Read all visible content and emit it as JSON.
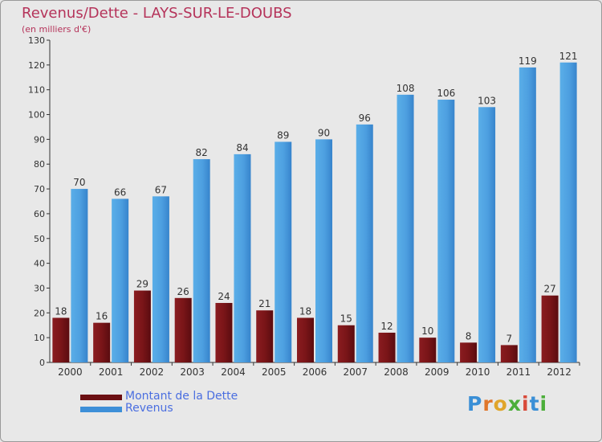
{
  "title": "Revenus/Dette - LAYS-SUR-LE-DOUBS",
  "subtitle": "(en milliers d'€)",
  "colors": {
    "dette": "#7a1518",
    "revenus": "#4d9fe0",
    "title": "#b5335a",
    "legend_text": "#4a6ee0"
  },
  "legend": [
    {
      "label": "Montant de la Dette",
      "color": "#6b0f12"
    },
    {
      "label": "Revenus",
      "color": "#3d8fd8"
    }
  ],
  "logo": {
    "text": "Proxiti"
  },
  "chart_data": {
    "type": "bar",
    "title": "Revenus/Dette - LAYS-SUR-LE-DOUBS",
    "subtitle": "(en milliers d'€)",
    "categories": [
      "2000",
      "2001",
      "2002",
      "2003",
      "2004",
      "2005",
      "2006",
      "2007",
      "2008",
      "2009",
      "2010",
      "2011",
      "2012"
    ],
    "series": [
      {
        "name": "Montant de la Dette",
        "values": [
          18,
          16,
          29,
          26,
          24,
          21,
          18,
          15,
          12,
          10,
          8,
          7,
          27
        ]
      },
      {
        "name": "Revenus",
        "values": [
          70,
          66,
          67,
          82,
          84,
          89,
          90,
          96,
          108,
          106,
          103,
          119,
          121
        ]
      }
    ],
    "ylim": [
      0,
      130
    ],
    "yticks": [
      0,
      10,
      20,
      30,
      40,
      50,
      60,
      70,
      80,
      90,
      100,
      110,
      120,
      130
    ],
    "grid": false,
    "legend_position": "bottom-left"
  }
}
